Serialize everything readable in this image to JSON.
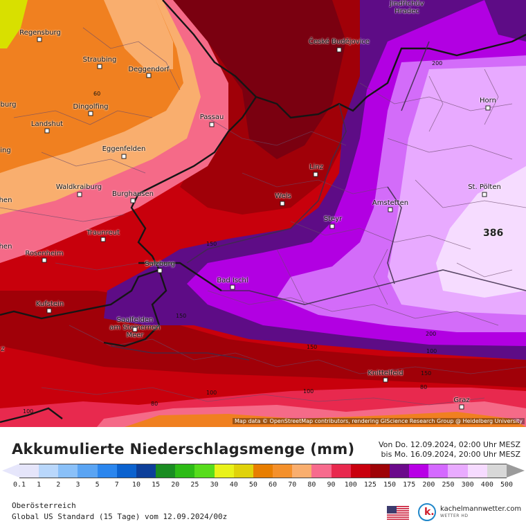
{
  "map": {
    "attribution": "Map data © OpenStreetMap contributors, rendering GIScience Research Group @ Heidelberg University",
    "max_value": "386",
    "cities": [
      {
        "name": "Jindřichův\nHradec",
        "key": "jindrichuv"
      },
      {
        "name": "Regensburg",
        "key": "regensburg"
      },
      {
        "name": "České Budějovice",
        "key": "ceske"
      },
      {
        "name": "Straubing",
        "key": "straubing"
      },
      {
        "name": "Deggendorf",
        "key": "deggendorf"
      },
      {
        "name": "Horn",
        "key": "horn"
      },
      {
        "name": "Dingolfing",
        "key": "dingolfing"
      },
      {
        "name": "Passau",
        "key": "passau"
      },
      {
        "name": "Landshut",
        "key": "landshut"
      },
      {
        "name": "Eggenfelden",
        "key": "eggenfelden"
      },
      {
        "name": "Linz",
        "key": "linz"
      },
      {
        "name": "Waldkraiburg",
        "key": "waldkraiburg"
      },
      {
        "name": "St. Pölten",
        "key": "stpoelten"
      },
      {
        "name": "Burghausen",
        "key": "burghausen"
      },
      {
        "name": "Wels",
        "key": "wels"
      },
      {
        "name": "Amstetten",
        "key": "amstetten"
      },
      {
        "name": "Steyr",
        "key": "steyr"
      },
      {
        "name": "Traunreut",
        "key": "traunreut"
      },
      {
        "name": "Rosenheim",
        "key": "rosenheim"
      },
      {
        "name": "Salzburg",
        "key": "salzburg"
      },
      {
        "name": "Bad Ischl",
        "key": "badischl"
      },
      {
        "name": "Kufstein",
        "key": "kufstein"
      },
      {
        "name": "Saalfelden\nam Steinernen\nMeer",
        "key": "saalfelden"
      },
      {
        "name": "Knittelfeld",
        "key": "knittelfeld"
      },
      {
        "name": "Graz",
        "key": "graz"
      }
    ],
    "edge_fragments": [
      "burg",
      "ing",
      "hen",
      "hen",
      "z"
    ],
    "contour_labels": [
      "60",
      "200",
      "150",
      "150",
      "200",
      "150",
      "100",
      "150",
      "100",
      "80",
      "100",
      "80",
      "100"
    ]
  },
  "legend": {
    "title": "Akkumulierte Niederschlagsmenge (mm)",
    "period_from": "Von Do. 12.09.2024, 02:00 Uhr MESZ",
    "period_to": "bis Mo. 16.09.2024, 20:00 Uhr MESZ",
    "ticks": [
      "0.1",
      "1",
      "2",
      "3",
      "5",
      "7",
      "10",
      "15",
      "20",
      "25",
      "30",
      "40",
      "50",
      "60",
      "70",
      "80",
      "90",
      "100",
      "125",
      "150",
      "175",
      "200",
      "250",
      "300",
      "400",
      "500"
    ],
    "colors": [
      "#e5e5fa",
      "#b9d7fb",
      "#8ac0f8",
      "#5aa4f3",
      "#2b86ee",
      "#0b62cf",
      "#0d3f9a",
      "#1a8c22",
      "#2dbb16",
      "#57dc1c",
      "#e9f21a",
      "#e0d20b",
      "#e87e00",
      "#f4902b",
      "#f9ae6e",
      "#f76b8d",
      "#e8294e",
      "#c9000e",
      "#9e0307",
      "#6b0a8b",
      "#b800e6",
      "#d469ff",
      "#e9abff",
      "#f6dbff",
      "#d8d8d8"
    ],
    "region": "Oberösterreich",
    "model": "Global US Standard (15 Tage) vom  12.09.2024/00z",
    "brand_name": "kachelmannwetter.com",
    "brand_sub": "WETTER HD",
    "brand_letter": "k."
  },
  "colors": {
    "band_lt20": "#d8e000",
    "band_50": "#f08020",
    "band_70": "#f9ae6e",
    "band_80": "#f56a88",
    "band_90": "#e8294e",
    "band_100": "#c8000c",
    "band_125": "#a00008",
    "band_150": "#7a0010",
    "band_175": "#5e0c86",
    "band_200": "#b200e2",
    "band_250": "#d36cf9",
    "band_300": "#e8aaff",
    "band_400": "#f6dcff"
  }
}
